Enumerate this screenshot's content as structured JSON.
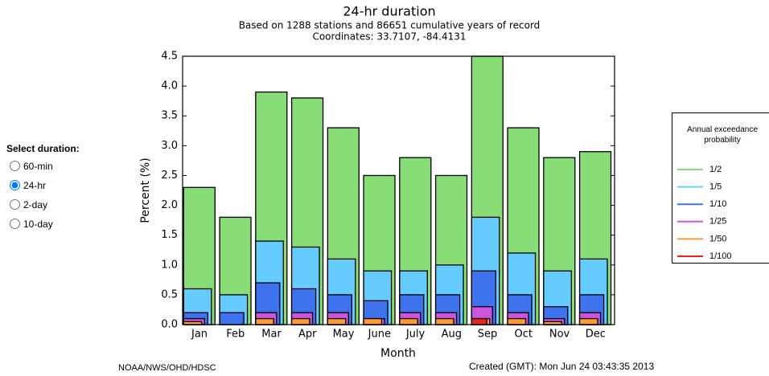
{
  "controls": {
    "title": "Select duration:",
    "options": [
      "60-min",
      "24-hr",
      "2-day",
      "10-day"
    ],
    "selected_index": 1
  },
  "chart_data": {
    "type": "bar",
    "title": "24-hr duration",
    "subtitle": [
      "Based on 1288 stations and 86651 cumulative years of record",
      "Coordinates: 33.7107, -84.4131"
    ],
    "x_label": "Month",
    "y_label": "Percent (%)",
    "categories": [
      "Jan",
      "Feb",
      "Mar",
      "Apr",
      "May",
      "June",
      "July",
      "Aug",
      "Sep",
      "Oct",
      "Nov",
      "Dec"
    ],
    "ylim": [
      0,
      4.5
    ],
    "yticks": [
      {
        "value": 0,
        "label": "0.0"
      },
      0.5,
      {
        "value": 1,
        "label": "1.0"
      },
      1.5,
      {
        "value": 2,
        "label": "2.0"
      },
      2.5,
      {
        "value": 3,
        "label": "3.0"
      },
      3.5,
      {
        "value": 4,
        "label": "4.0"
      },
      4.5
    ],
    "legend_title": "Annual exceedance probability",
    "series": [
      {
        "name": "1/2",
        "color": "#88dd77",
        "values": [
          2.3,
          1.8,
          3.9,
          3.8,
          3.3,
          2.5,
          2.8,
          2.5,
          4.5,
          3.3,
          2.8,
          2.9
        ]
      },
      {
        "name": "1/5",
        "color": "#66ccff",
        "values": [
          0.6,
          0.5,
          1.4,
          1.3,
          1.1,
          0.9,
          0.9,
          1.0,
          1.8,
          1.2,
          0.9,
          1.1
        ]
      },
      {
        "name": "1/10",
        "color": "#3f73ee",
        "values": [
          0.2,
          0.2,
          0.7,
          0.6,
          0.5,
          0.4,
          0.5,
          0.5,
          0.9,
          0.5,
          0.3,
          0.5
        ]
      },
      {
        "name": "1/25",
        "color": "#cc55dd",
        "values": [
          0.1,
          0,
          0.2,
          0.2,
          0.2,
          0.1,
          0.2,
          0.2,
          0.3,
          0.2,
          0.1,
          0.2
        ]
      },
      {
        "name": "1/50",
        "color": "#ff9933",
        "values": [
          0.05,
          0,
          0.1,
          0.1,
          0.1,
          0.1,
          0.1,
          0.1,
          0.1,
          0.1,
          0.05,
          0.1
        ]
      },
      {
        "name": "1/100",
        "color": "#ee2222",
        "values": [
          0,
          0,
          0,
          0,
          0,
          0,
          0,
          0,
          0.1,
          0,
          0,
          0
        ]
      }
    ]
  },
  "footer": {
    "left": "NOAA/NWS/OHD/HDSC",
    "right": "Created (GMT): Mon Jun 24 03:43:35 2013"
  }
}
